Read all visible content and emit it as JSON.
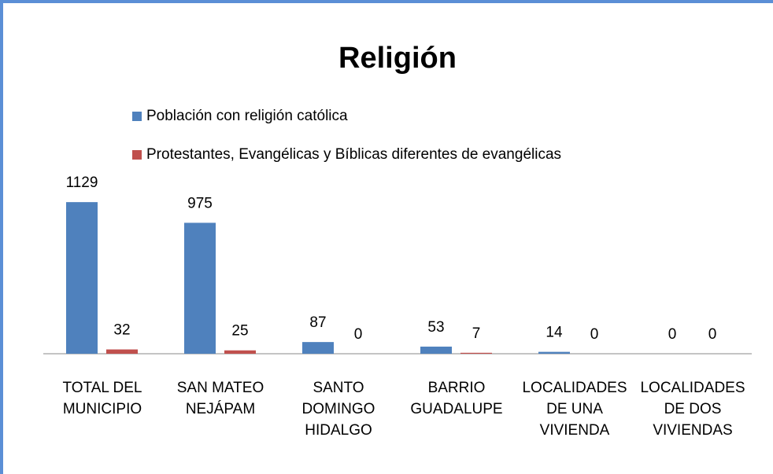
{
  "chart_data": {
    "type": "bar",
    "title": "Religión",
    "categories": [
      "TOTAL DEL MUNICIPIO",
      "SAN MATEO NEJÁPAM",
      "SANTO DOMINGO HIDALGO",
      "BARRIO GUADALUPE",
      "LOCALIDADES DE UNA VIVIENDA",
      "LOCALIDADES DE DOS VIVIENDAS"
    ],
    "series": [
      {
        "name": "Población con religión católica",
        "color": "#4f81bd",
        "values": [
          1129,
          975,
          87,
          53,
          14,
          0
        ]
      },
      {
        "name": "Protestantes, Evangélicas y Bíblicas diferentes de evangélicas",
        "color": "#c0504d",
        "values": [
          32,
          25,
          0,
          7,
          0,
          0
        ]
      }
    ],
    "ylim": [
      0,
      1200
    ],
    "grid": false
  }
}
